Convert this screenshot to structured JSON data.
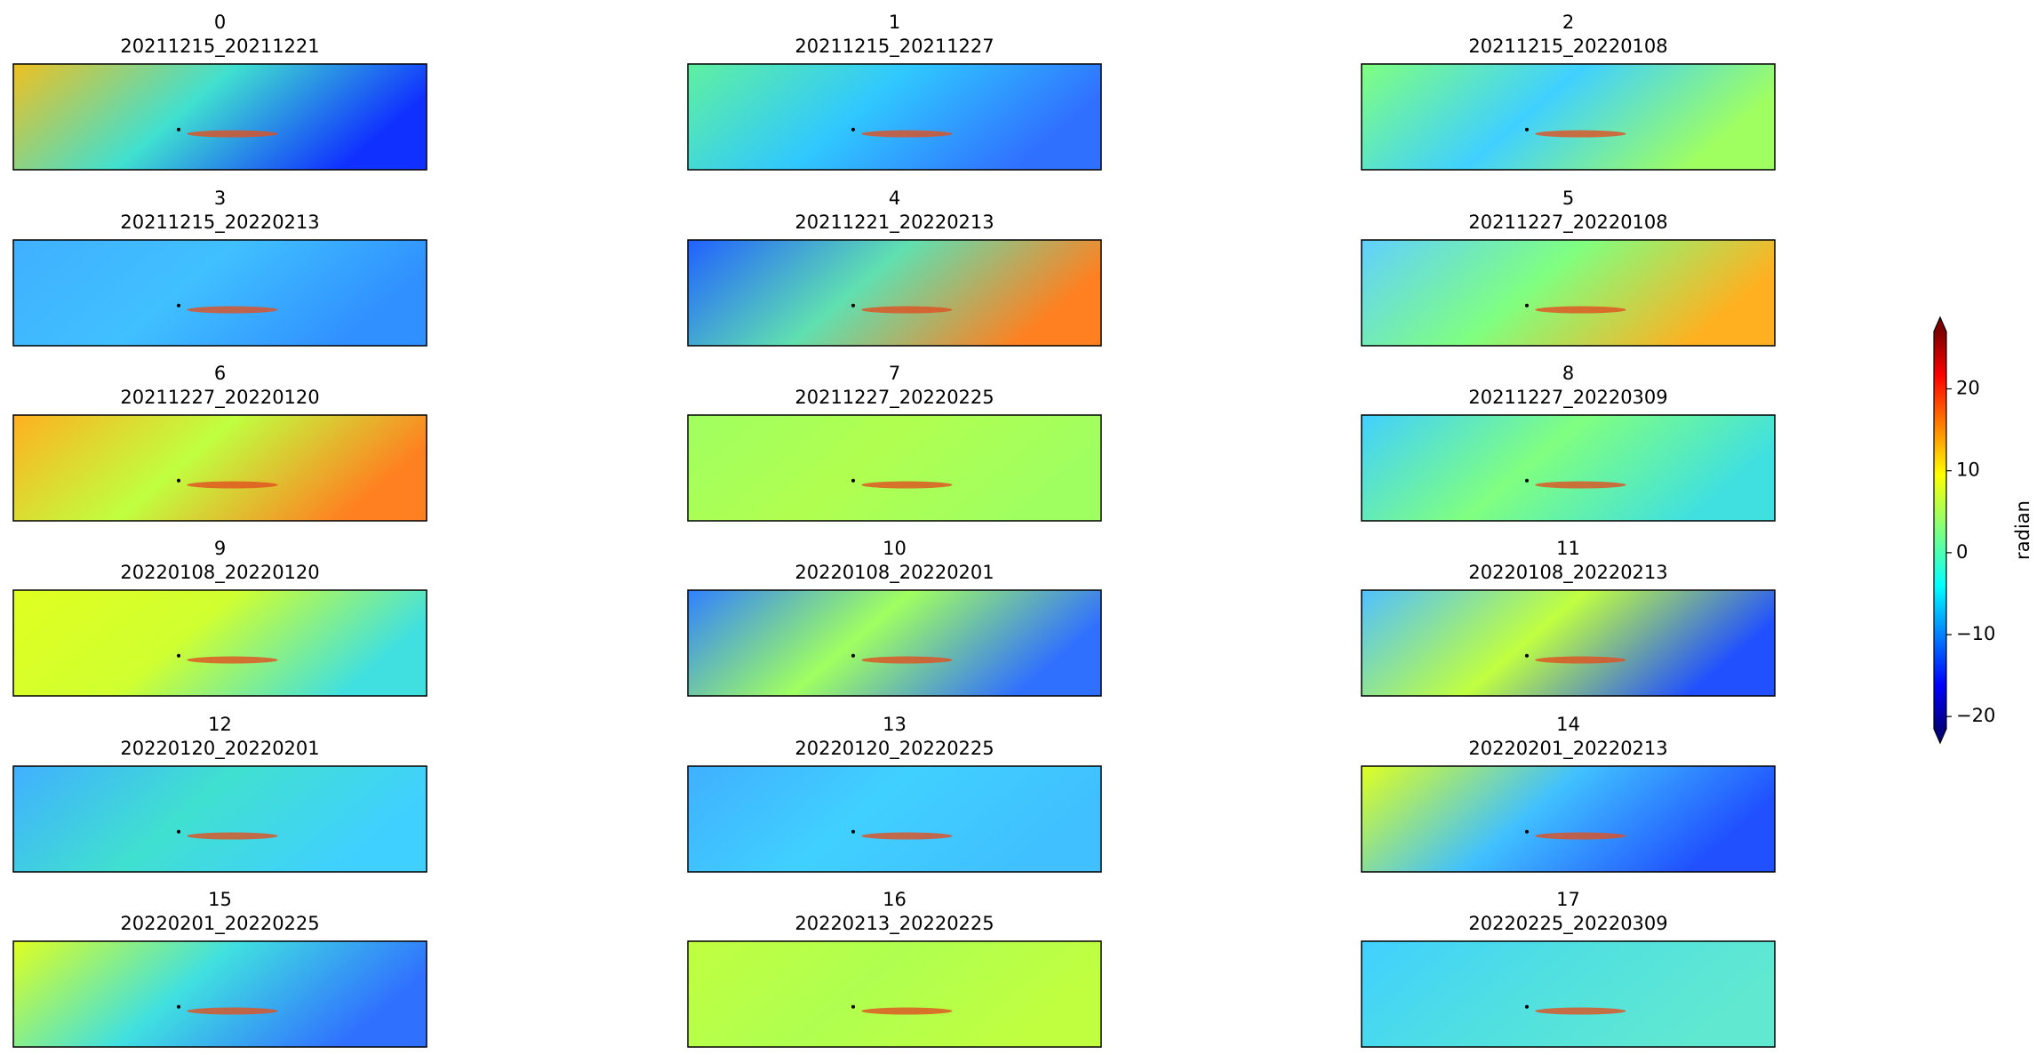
{
  "chart_data": {
    "type": "image-grid",
    "panels": [
      {
        "index": "0",
        "dates": "20211215_20211221"
      },
      {
        "index": "1",
        "dates": "20211215_20211227"
      },
      {
        "index": "2",
        "dates": "20211215_20220108"
      },
      {
        "index": "3",
        "dates": "20211215_20220213"
      },
      {
        "index": "4",
        "dates": "20211221_20220213"
      },
      {
        "index": "5",
        "dates": "20211227_20220108"
      },
      {
        "index": "6",
        "dates": "20211227_20220120"
      },
      {
        "index": "7",
        "dates": "20211227_20220225"
      },
      {
        "index": "8",
        "dates": "20211227_20220309"
      },
      {
        "index": "9",
        "dates": "20220108_20220120"
      },
      {
        "index": "10",
        "dates": "20220108_20220201"
      },
      {
        "index": "11",
        "dates": "20220108_20220213"
      },
      {
        "index": "12",
        "dates": "20220120_20220201"
      },
      {
        "index": "13",
        "dates": "20220120_20220225"
      },
      {
        "index": "14",
        "dates": "20220201_20220213"
      },
      {
        "index": "15",
        "dates": "20220201_20220225"
      },
      {
        "index": "16",
        "dates": "20220213_20220225"
      },
      {
        "index": "17",
        "dates": "20220225_20220309"
      }
    ],
    "colorbar": {
      "label": "radian",
      "colormap": "jet",
      "ylim": [
        -21.5,
        27
      ],
      "yticks": [
        {
          "value": -20,
          "label": "−20"
        },
        {
          "value": -10,
          "label": "−10"
        },
        0,
        10,
        20
      ]
    }
  }
}
